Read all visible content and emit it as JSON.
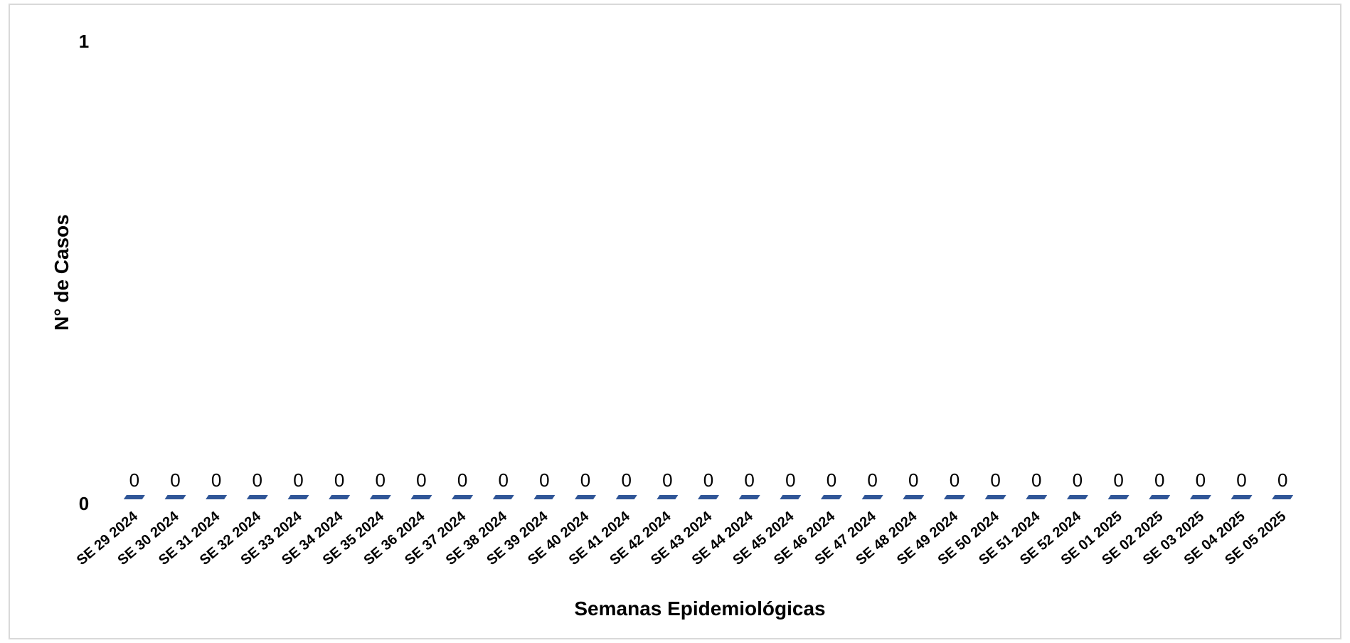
{
  "chart_data": {
    "type": "bar",
    "title": "",
    "xlabel": "Semanas Epidemiológicas",
    "ylabel": "N° de Casos",
    "ylim": [
      0,
      1
    ],
    "yticks": [
      "0",
      "1"
    ],
    "grid": false,
    "legend": "none",
    "bar_color": "#2f5597",
    "categories": [
      "SE 29 2024",
      "SE 30 2024",
      "SE 31 2024",
      "SE 32 2024",
      "SE 33 2024",
      "SE 34 2024",
      "SE 35 2024",
      "SE 36 2024",
      "SE 37 2024",
      "SE 38 2024",
      "SE 39 2024",
      "SE 40 2024",
      "SE 41 2024",
      "SE 42 2024",
      "SE 43 2024",
      "SE 44 2024",
      "SE 45 2024",
      "SE 46 2024",
      "SE 47 2024",
      "SE 48 2024",
      "SE 49 2024",
      "SE 50 2024",
      "SE 51 2024",
      "SE 52 2024",
      "SE 01 2025",
      "SE 02 2025",
      "SE 03 2025",
      "SE 04 2025",
      "SE 05 2025"
    ],
    "values": [
      0,
      0,
      0,
      0,
      0,
      0,
      0,
      0,
      0,
      0,
      0,
      0,
      0,
      0,
      0,
      0,
      0,
      0,
      0,
      0,
      0,
      0,
      0,
      0,
      0,
      0,
      0,
      0,
      0
    ]
  }
}
